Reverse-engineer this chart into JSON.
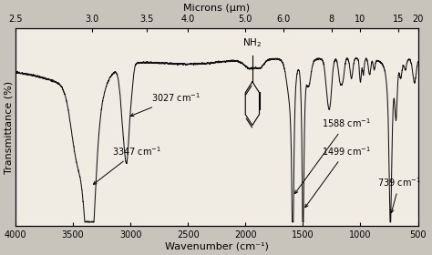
{
  "title_top": "Microns (μm)",
  "xlabel": "Wavenumber (cm⁻¹)",
  "ylabel": "Transmittance (%)",
  "x_bottom_ticks": [
    4000,
    3500,
    3000,
    2500,
    2000,
    1500,
    1000,
    500
  ],
  "x_bottom_labels": [
    "4000",
    "3500",
    "3000",
    "2500",
    "2000",
    "1500",
    "1000",
    "500"
  ],
  "micron_wn": [
    4000,
    3333,
    2857,
    2500,
    2000,
    1667,
    1250,
    1000,
    667,
    500
  ],
  "micron_labels": [
    "2.5",
    "3.0",
    "3.5",
    "4.0",
    "5.0",
    "6.0",
    "8",
    "10",
    "15",
    "20"
  ],
  "line_color": "#111111",
  "background": "#f0ece4",
  "fig_background": "#c8c4bc",
  "annot_fontsize": 7,
  "axis_fontsize": 8,
  "tick_fontsize": 7
}
